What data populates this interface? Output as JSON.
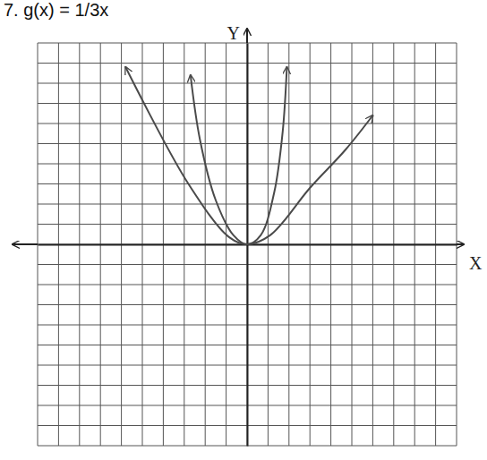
{
  "chart_data": {
    "type": "line",
    "title": "7. g(x) = 1/3x",
    "x_label": "X",
    "y_label": "Y",
    "xlim": [
      -10,
      10
    ],
    "ylim": [
      -10,
      10
    ],
    "xticks": [
      -10,
      -9,
      -8,
      -7,
      -6,
      -5,
      -4,
      -3,
      -2,
      -1,
      0,
      1,
      2,
      3,
      4,
      5,
      6,
      7,
      8,
      9,
      10
    ],
    "yticks": [
      -10,
      -9,
      -8,
      -7,
      -6,
      -5,
      -4,
      -3,
      -2,
      -1,
      0,
      1,
      2,
      3,
      4,
      5,
      6,
      7,
      8,
      9,
      10
    ],
    "grid": true,
    "tick_labels": false,
    "series": [
      {
        "color": "#4a4a4a",
        "x": [
          -5.8,
          -2.8,
          -0.85,
          0,
          1.1,
          3.0,
          4.7,
          6.0
        ],
        "values": [
          8.8,
          3.0,
          0.35,
          0,
          0.45,
          2.8,
          4.7,
          6.4
        ]
      },
      {
        "color": "#4a4a4a",
        "x": [
          -2.7,
          -2.25,
          -1.5,
          -0.65,
          0,
          0.65,
          1.3,
          1.7,
          1.9
        ],
        "values": [
          8.4,
          5.2,
          2.2,
          0.45,
          0,
          0.45,
          2.6,
          5.6,
          8.8
        ]
      }
    ]
  }
}
